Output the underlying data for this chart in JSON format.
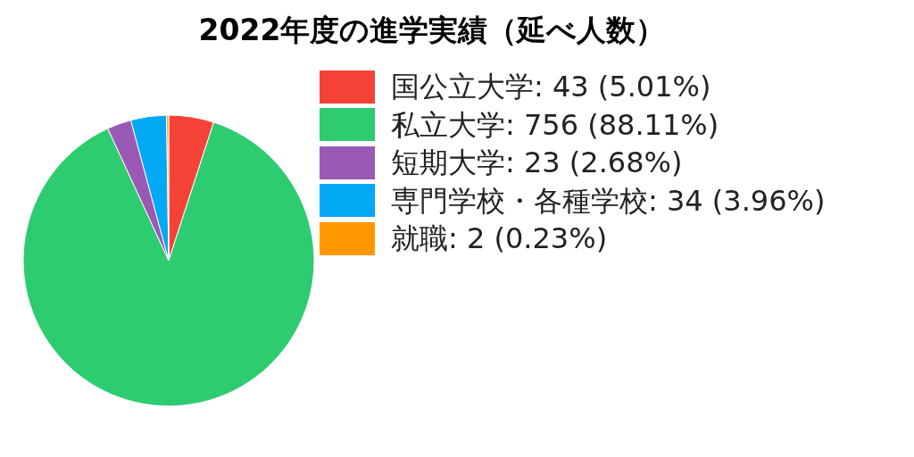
{
  "chart_data": {
    "type": "pie",
    "title": "2022年度の進学実績（延べ人数）",
    "categories": [
      "国公立大学",
      "私立大学",
      "短期大学",
      "専門学校・各種学校",
      "就職"
    ],
    "values": [
      43,
      756,
      23,
      34,
      2
    ],
    "colors": [
      "#f44336",
      "#2ecc71",
      "#9b59b6",
      "#03a9f4",
      "#ff9800"
    ],
    "value_labels": [
      "43 (5.01%)",
      "756 (88.11%)",
      "23 (2.68%)",
      "34 (3.96%)",
      "2 (0.23%)"
    ],
    "legend": "top right"
  }
}
